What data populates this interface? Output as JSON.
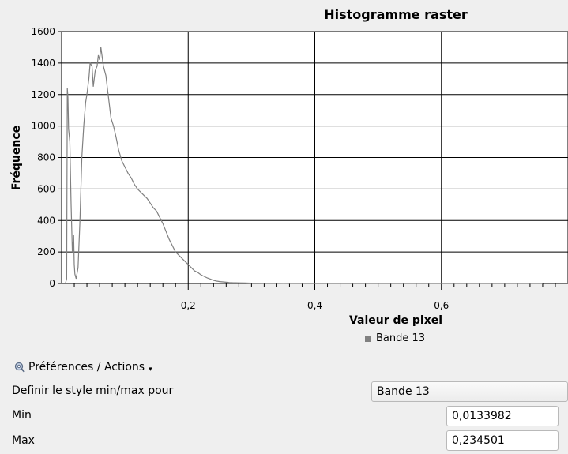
{
  "chart_data": {
    "type": "line",
    "title": "Histogramme raster",
    "xlabel": "Valeur de pixel",
    "ylabel": "Fréquence",
    "xlim": [
      0.0,
      0.8
    ],
    "ylim": [
      0,
      1600
    ],
    "x_ticks": [
      "0,2",
      "0,4",
      "0,6"
    ],
    "x_tick_values": [
      0.2,
      0.4,
      0.6
    ],
    "y_ticks": [
      "0",
      "200",
      "400",
      "600",
      "800",
      "1000",
      "1200",
      "1400",
      "1600"
    ],
    "y_tick_values": [
      0,
      200,
      400,
      600,
      800,
      1000,
      1200,
      1400,
      1600
    ],
    "grid": true,
    "legend_position": "bottom-center",
    "series": [
      {
        "name": "Bande 13",
        "color": "#808080",
        "x": [
          0.006,
          0.008,
          0.009,
          0.01,
          0.011,
          0.012,
          0.013,
          0.015,
          0.017,
          0.019,
          0.02,
          0.021,
          0.023,
          0.026,
          0.029,
          0.032,
          0.035,
          0.038,
          0.04,
          0.043,
          0.045,
          0.048,
          0.05,
          0.053,
          0.056,
          0.058,
          0.06,
          0.062,
          0.064,
          0.066,
          0.068,
          0.07,
          0.072,
          0.075,
          0.078,
          0.082,
          0.086,
          0.09,
          0.095,
          0.1,
          0.105,
          0.11,
          0.115,
          0.12,
          0.125,
          0.13,
          0.135,
          0.14,
          0.145,
          0.15,
          0.155,
          0.16,
          0.165,
          0.17,
          0.175,
          0.18,
          0.185,
          0.19,
          0.195,
          0.2,
          0.205,
          0.21,
          0.215,
          0.22,
          0.225,
          0.23,
          0.235,
          0.24,
          0.245,
          0.25,
          0.255,
          0.26,
          0.265,
          0.27,
          0.28,
          0.29,
          0.3,
          0.31,
          0.32,
          0.33,
          0.34,
          0.36,
          0.4,
          0.5,
          0.6,
          0.7,
          0.76
        ],
        "values": [
          0,
          30,
          1240,
          1180,
          980,
          940,
          900,
          500,
          200,
          310,
          120,
          60,
          30,
          100,
          400,
          800,
          1000,
          1150,
          1200,
          1300,
          1400,
          1380,
          1250,
          1350,
          1380,
          1450,
          1420,
          1500,
          1440,
          1380,
          1350,
          1320,
          1250,
          1150,
          1050,
          1000,
          930,
          850,
          780,
          740,
          700,
          670,
          630,
          600,
          580,
          560,
          540,
          510,
          480,
          460,
          420,
          380,
          330,
          280,
          240,
          200,
          180,
          160,
          140,
          120,
          100,
          80,
          70,
          55,
          45,
          35,
          28,
          20,
          15,
          12,
          10,
          8,
          6,
          5,
          4,
          3,
          2,
          2,
          1,
          1,
          1,
          0,
          0,
          0,
          0,
          0,
          0
        ]
      }
    ]
  },
  "preferences": {
    "label": "Préférences / Actions",
    "icon": "gear-magnifier-icon"
  },
  "style_row": {
    "label": "Definir le style min/max pour",
    "value": "Bande 13"
  },
  "min_row": {
    "label": "Min",
    "value": "0,0133982"
  },
  "max_row": {
    "label": "Max",
    "value": "0,234501"
  }
}
